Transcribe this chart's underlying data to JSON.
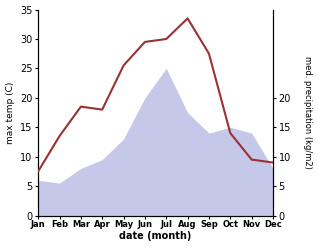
{
  "months": [
    "Jan",
    "Feb",
    "Mar",
    "Apr",
    "May",
    "Jun",
    "Jul",
    "Aug",
    "Sep",
    "Oct",
    "Nov",
    "Dec"
  ],
  "month_x": [
    1,
    2,
    3,
    4,
    5,
    6,
    7,
    8,
    9,
    10,
    11,
    12
  ],
  "temp_max": [
    7.5,
    13.5,
    18.5,
    18.0,
    25.5,
    29.5,
    30.0,
    33.5,
    27.5,
    14.0,
    9.5,
    9.0
  ],
  "precip": [
    6.0,
    5.5,
    8.0,
    9.5,
    13.0,
    20.0,
    25.0,
    17.5,
    14.0,
    15.0,
    14.0,
    8.0
  ],
  "temp_color": "#993333",
  "precip_fill_color": "#c5c8e8",
  "ylabel_left": "max temp (C)",
  "ylabel_right": "med. precipitation (kg/m2)",
  "xlabel": "date (month)",
  "ylim_left": [
    0,
    35
  ],
  "ylim_right": [
    0,
    35
  ],
  "yticks_left": [
    0,
    5,
    10,
    15,
    20,
    25,
    30,
    35
  ],
  "yticks_right": [
    0,
    5,
    10,
    15,
    20
  ],
  "ytick_labels_right": [
    "0",
    "5",
    "10",
    "15",
    "20"
  ]
}
